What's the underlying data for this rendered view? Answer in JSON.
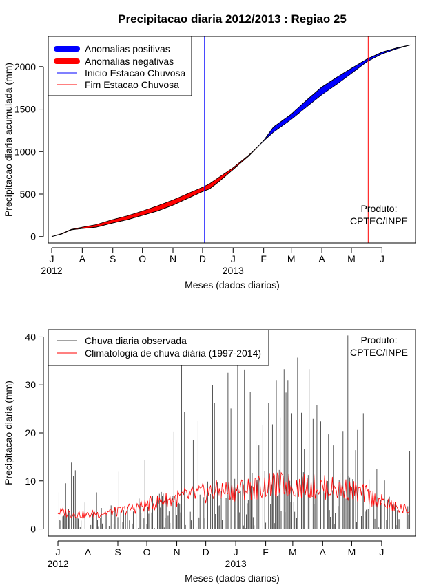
{
  "figure": {
    "title": "Precipitacao diaria 2012/2013 : Regiao 25",
    "credit": [
      "Produto:",
      "CPTEC/INPE"
    ]
  },
  "chart_data": [
    {
      "type": "area",
      "name": "cumulative",
      "ylabel": "Precipitacao diaria acumulada (mm)",
      "xlabel": "Meses (dados diarios)",
      "xlim": [
        -3.5,
        369
      ],
      "ylim": [
        -75,
        2355
      ],
      "yticks": [
        0,
        500,
        1000,
        1500,
        2000
      ],
      "month_ticks": [
        {
          "label": "J",
          "day": 0
        },
        {
          "label": "A",
          "day": 31
        },
        {
          "label": "S",
          "day": 62
        },
        {
          "label": "O",
          "day": 92
        },
        {
          "label": "N",
          "day": 123
        },
        {
          "label": "D",
          "day": 153
        },
        {
          "label": "J",
          "day": 184
        },
        {
          "label": "F",
          "day": 215
        },
        {
          "label": "M",
          "day": 243
        },
        {
          "label": "A",
          "day": 274
        },
        {
          "label": "M",
          "day": 304
        },
        {
          "label": "J",
          "day": 335
        }
      ],
      "year_labels": [
        {
          "label": "2012",
          "day": 0
        },
        {
          "label": "2013",
          "day": 184
        }
      ],
      "legend": [
        {
          "label": "Anomalias positivas",
          "color": "#0000ff",
          "style": "thick"
        },
        {
          "label": "Anomalias negativas",
          "color": "#ff0000",
          "style": "thick"
        },
        {
          "label": "Inicio Estacao Chuvosa",
          "color": "#0000ff",
          "style": "thin"
        },
        {
          "label": "Fim Estacao Chuvosa",
          "color": "#ff0000",
          "style": "thin"
        }
      ],
      "onset_day": 155,
      "end_day": 321,
      "observed_accum": {
        "days": [
          0,
          10,
          20,
          31,
          45,
          62,
          77,
          92,
          107,
          123,
          138,
          153,
          160,
          170,
          184,
          200,
          215,
          225,
          243,
          260,
          274,
          290,
          304,
          320,
          335,
          350,
          364
        ],
        "mm": [
          0,
          30,
          80,
          95,
          110,
          160,
          200,
          250,
          300,
          370,
          450,
          530,
          560,
          650,
          790,
          950,
          1130,
          1290,
          1440,
          1620,
          1760,
          1880,
          1980,
          2090,
          2170,
          2220,
          2255
        ]
      },
      "climatology_accum": {
        "days": [
          0,
          10,
          20,
          31,
          45,
          62,
          77,
          92,
          107,
          123,
          138,
          153,
          160,
          170,
          184,
          200,
          215,
          225,
          243,
          260,
          274,
          290,
          304,
          320,
          335,
          350,
          364
        ],
        "mm": [
          0,
          35,
          85,
          110,
          140,
          200,
          245,
          300,
          360,
          430,
          505,
          580,
          620,
          700,
          810,
          960,
          1125,
          1230,
          1380,
          1540,
          1670,
          1800,
          1920,
          2060,
          2150,
          2210,
          2255
        ]
      }
    },
    {
      "type": "line",
      "name": "daily",
      "ylabel": "Precipitacao diaria (mm)",
      "xlabel": "Meses (dados diarios)",
      "xlim": [
        -10,
        370
      ],
      "ylim": [
        -1.5,
        41.5
      ],
      "yticks": [
        0,
        10,
        20,
        30,
        40
      ],
      "month_ticks": [
        {
          "label": "J",
          "day": 0
        },
        {
          "label": "A",
          "day": 31
        },
        {
          "label": "S",
          "day": 62
        },
        {
          "label": "O",
          "day": 92
        },
        {
          "label": "N",
          "day": 123
        },
        {
          "label": "D",
          "day": 153
        },
        {
          "label": "J",
          "day": 184
        },
        {
          "label": "F",
          "day": 215
        },
        {
          "label": "M",
          "day": 243
        },
        {
          "label": "A",
          "day": 274
        },
        {
          "label": "M",
          "day": 304
        },
        {
          "label": "J",
          "day": 335
        }
      ],
      "year_labels": [
        {
          "label": "2012",
          "day": 0
        },
        {
          "label": "2013",
          "day": 184
        }
      ],
      "legend": [
        {
          "label": "Chuva diaria observada",
          "color": "#444444"
        },
        {
          "label": "Climatologia de chuva diária (1997-2014)",
          "color": "#ff0000"
        }
      ],
      "observed_peaks": {
        "days": [
          1,
          8,
          14,
          16,
          18,
          28,
          40,
          55,
          63,
          90,
          108,
          120,
          128,
          131,
          140,
          145,
          160,
          162,
          176,
          179,
          186,
          193,
          199,
          205,
          208,
          212,
          218,
          222,
          226,
          230,
          234,
          236,
          238,
          242,
          248,
          252,
          255,
          260,
          264,
          268,
          272,
          280,
          285,
          295,
          300,
          308,
          310,
          316,
          322,
          330,
          338,
          364
        ],
        "mm": [
          7.6,
          9.5,
          13.8,
          11,
          12.2,
          5.5,
          7.6,
          4.9,
          11.9,
          14.4,
          6.9,
          20.3,
          40.4,
          24.3,
          18.5,
          22.5,
          30,
          26.2,
          32.5,
          25.1,
          40.9,
          33.2,
          28.6,
          18.3,
          17.4,
          21.6,
          26.2,
          21.8,
          31,
          23.2,
          33.3,
          28.4,
          31,
          24.1,
          35.7,
          24.2,
          16.7,
          33.3,
          22.9,
          25.8,
          22.4,
          19.7,
          17.4,
          20.4,
          40.3,
          16.4,
          20.6,
          24.1,
          10.3,
          12.4,
          10.1,
          16.2
        ]
      },
      "climatology": {
        "days": [
          0,
          15,
          31,
          45,
          62,
          77,
          92,
          107,
          123,
          138,
          153,
          168,
          184,
          200,
          215,
          229,
          243,
          258,
          274,
          289,
          304,
          320,
          335,
          350,
          364
        ],
        "mm": [
          3.6,
          3.2,
          2.9,
          3.3,
          3.6,
          4.3,
          5.0,
          5.8,
          6.4,
          6.9,
          7.5,
          7.9,
          8.1,
          8.5,
          8.9,
          9.1,
          9.0,
          8.9,
          8.7,
          8.4,
          8.0,
          7.0,
          5.6,
          4.4,
          3.8
        ]
      }
    }
  ]
}
